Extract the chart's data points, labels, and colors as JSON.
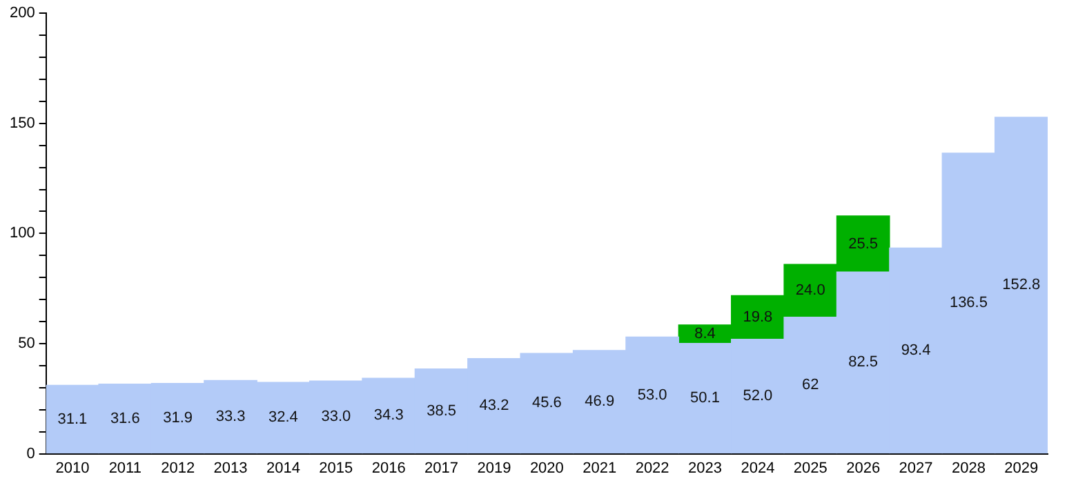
{
  "chart_data": {
    "type": "bar",
    "stacked": true,
    "categories": [
      "2010",
      "2011",
      "2012",
      "2013",
      "2014",
      "2015",
      "2016",
      "2017",
      "2019",
      "2020",
      "2021",
      "2022",
      "2023",
      "2024",
      "2025",
      "2026",
      "2027",
      "2028",
      "2029"
    ],
    "series": [
      {
        "color": "#b3cbf8",
        "values": [
          31.1,
          31.6,
          31.9,
          33.3,
          32.4,
          33.0,
          34.3,
          38.5,
          43.2,
          45.6,
          46.9,
          53.0,
          50.1,
          52.0,
          62,
          82.5,
          93.4,
          136.5,
          152.8
        ],
        "value_labels": [
          "31.1",
          "31.6",
          "31.9",
          "33.3",
          "32.4",
          "33.0",
          "34.3",
          "38.5",
          "43.2",
          "45.6",
          "46.9",
          "53.0",
          "50.1",
          "52.0",
          "62",
          "82.5",
          "93.4",
          "136.5",
          "152.8"
        ]
      },
      {
        "color": "#00b000",
        "values": [
          null,
          null,
          null,
          null,
          null,
          null,
          null,
          null,
          null,
          null,
          null,
          null,
          8.4,
          19.8,
          24.0,
          25.5,
          null,
          null,
          null
        ],
        "value_labels": [
          null,
          null,
          null,
          null,
          null,
          null,
          null,
          null,
          null,
          null,
          null,
          null,
          "8.4",
          "19.8",
          "24.0",
          "25.5",
          null,
          null,
          null
        ]
      }
    ],
    "ylim": [
      0,
      200
    ],
    "yticks": [
      0,
      {
        "value": 10,
        "label": null
      },
      {
        "value": 20,
        "label": null
      },
      {
        "value": 30,
        "label": null
      },
      {
        "value": 40,
        "label": null
      },
      50,
      {
        "value": 60,
        "label": null
      },
      {
        "value": 70,
        "label": null
      },
      {
        "value": 80,
        "label": null
      },
      {
        "value": 90,
        "label": null
      },
      100,
      {
        "value": 110,
        "label": null
      },
      {
        "value": 120,
        "label": null
      },
      {
        "value": 130,
        "label": null
      },
      {
        "value": 140,
        "label": null
      },
      150,
      {
        "value": 160,
        "label": null
      },
      {
        "value": 170,
        "label": null
      },
      {
        "value": 180,
        "label": null
      },
      {
        "value": 190,
        "label": null
      },
      200
    ],
    "grid": false,
    "legend": false
  }
}
